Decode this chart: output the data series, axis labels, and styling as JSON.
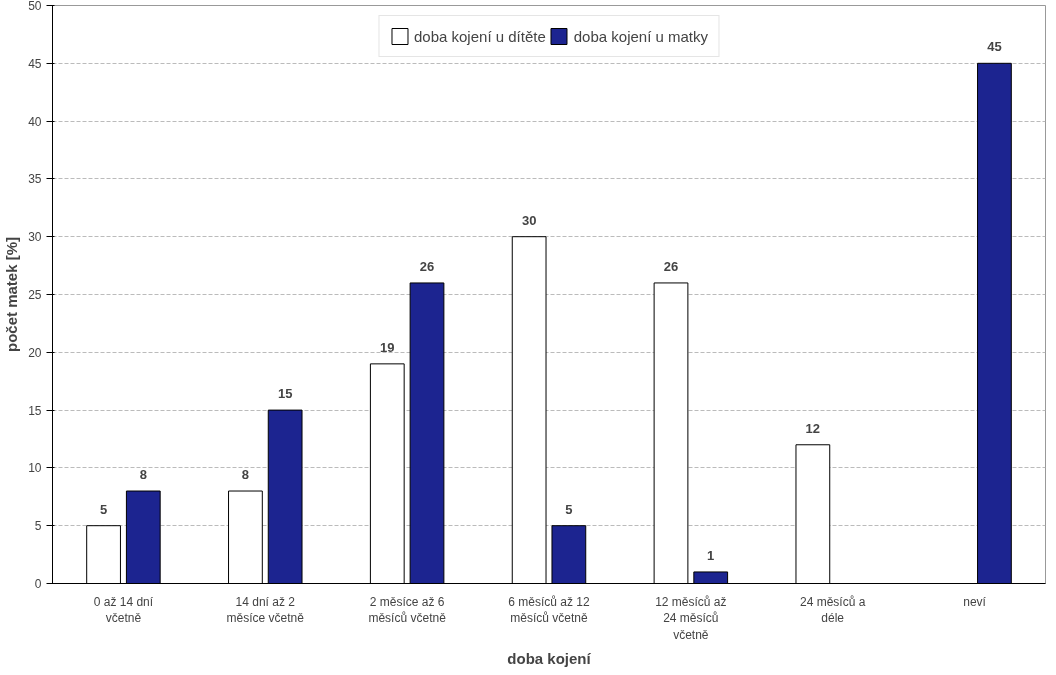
{
  "chart_data": {
    "type": "bar",
    "xlabel": "doba kojení",
    "ylabel": "počet matek [%]",
    "categories": [
      "0 až 14 dní\nvčetně",
      "14 dní až 2\nměsíce včetně",
      "2 měsíce až 6\nměsíců včetně",
      "6 měsíců až 12\nměsíců včetně",
      "12 měsíců až\n24 měsíců\nvčetně",
      "24 měsíců a\ndéle",
      "neví"
    ],
    "series": [
      {
        "name": "doba kojení u dítěte",
        "color": "#ffffff",
        "values": [
          5,
          8,
          19,
          30,
          26,
          12,
          null
        ]
      },
      {
        "name": "doba kojení u matky",
        "color": "#1c2490",
        "values": [
          8,
          15,
          26,
          5,
          1,
          null,
          45
        ]
      }
    ],
    "ylim": [
      0,
      50
    ],
    "yticks": [
      0,
      5,
      10,
      15,
      20,
      25,
      30,
      35,
      40,
      45,
      50
    ],
    "grid": "y",
    "legend": "top",
    "data_labels": true
  }
}
